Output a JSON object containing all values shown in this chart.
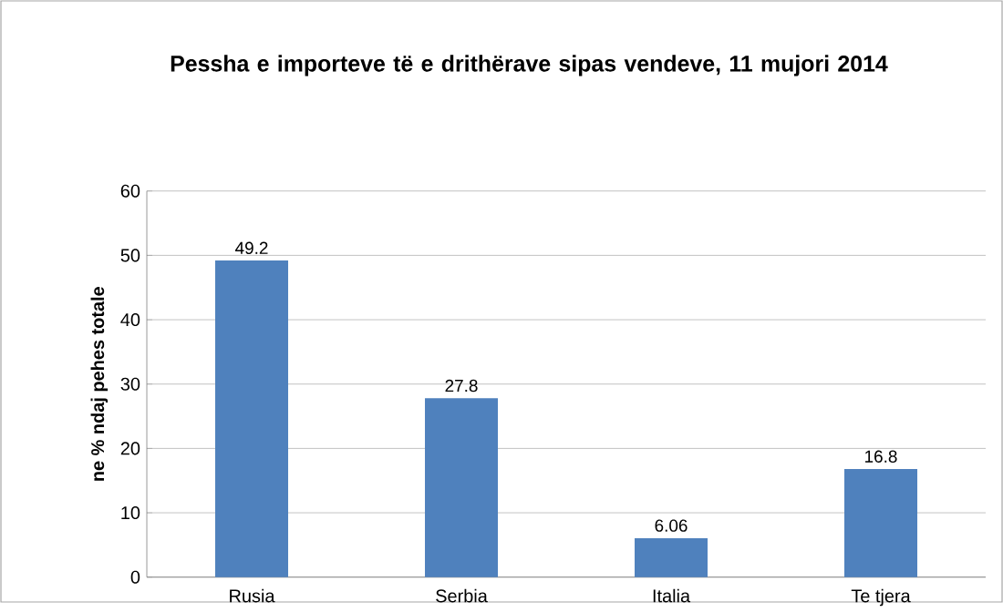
{
  "chart_data": {
    "type": "bar",
    "title": "Pessha e importeve të e drithërave sipas vendeve, 11 mujori 2014",
    "ylabel": "ne % ndaj pehes  totale",
    "categories": [
      "Rusia",
      "Serbia",
      "Italia",
      "Te tjera"
    ],
    "values": [
      49.2,
      27.8,
      6.06,
      16.8
    ],
    "color": "#4f81bd",
    "ylim": [
      0,
      60
    ],
    "yticks": [
      0,
      10,
      20,
      30,
      40,
      50,
      60
    ],
    "grid": "y",
    "data_labels": true
  }
}
